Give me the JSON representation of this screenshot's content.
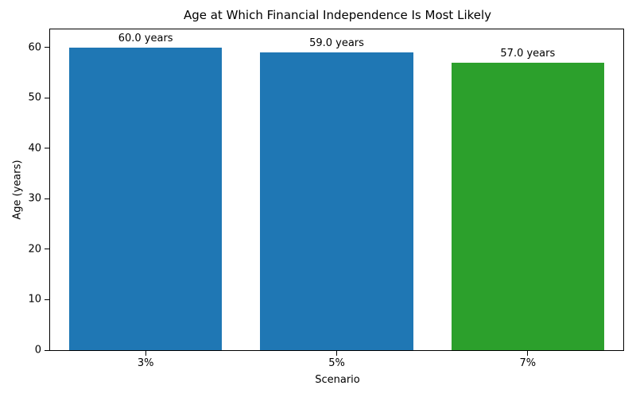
{
  "chart_data": {
    "type": "bar",
    "title": "Age at Which Financial Independence Is Most Likely",
    "xlabel": "Scenario",
    "ylabel": "Age (years)",
    "categories": [
      "3%",
      "5%",
      "7%"
    ],
    "values": [
      60.0,
      59.0,
      57.0
    ],
    "bar_labels": [
      "60.0 years",
      "59.0 years",
      "57.0 years"
    ],
    "bar_colors": [
      "#1f77b4",
      "#1f77b4",
      "#2ca02c"
    ],
    "yticks": [
      0,
      10,
      20,
      30,
      40,
      50,
      60
    ],
    "ylim": [
      0,
      63.6
    ],
    "bar_width_fraction": 0.8,
    "grid": false,
    "legend_position": "none",
    "spine_color": "#000000",
    "background_color": "#ffffff"
  }
}
